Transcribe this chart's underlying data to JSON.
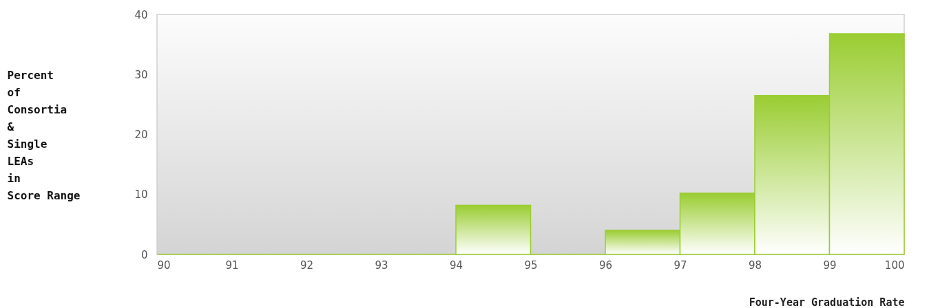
{
  "chart_data": {
    "type": "histogram",
    "xlabel": "Four-Year Graduation Rate",
    "ylabel": "Percent\nof\nConsortia\n&\nSingle\nLEAs\nin\nScore Range",
    "bins": [
      90,
      91,
      92,
      93,
      94,
      95,
      96,
      97,
      98,
      99,
      100
    ],
    "values": [
      0,
      0,
      0,
      0,
      8.2,
      0,
      4.0,
      10.2,
      26.5,
      36.8
    ],
    "color": "#9acd32",
    "xlim": [
      90,
      100
    ],
    "xticks": [
      90,
      91,
      92,
      93,
      94,
      95,
      96,
      97,
      98,
      99,
      100
    ],
    "ylim": [
      0,
      40
    ],
    "yticks": [
      0,
      10,
      20,
      30,
      40
    ]
  }
}
